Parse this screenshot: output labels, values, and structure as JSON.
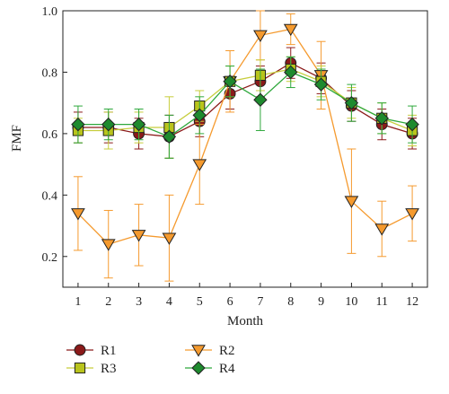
{
  "chart_data": {
    "type": "line",
    "xlabel": "Month",
    "ylabel": "FMF",
    "x": [
      1,
      2,
      3,
      4,
      5,
      6,
      7,
      8,
      9,
      10,
      11,
      12
    ],
    "xlim": [
      0.5,
      12.5
    ],
    "ylim": [
      0.1,
      1.0
    ],
    "yticks": [
      0.2,
      0.4,
      0.6,
      0.8,
      1.0
    ],
    "ytick_labels": [
      "0.2",
      "0.4",
      "0.6",
      "0.8",
      "1.0"
    ],
    "xtick_labels": [
      "1",
      "2",
      "3",
      "4",
      "5",
      "6",
      "7",
      "8",
      "9",
      "10",
      "11",
      "12"
    ],
    "grid": false,
    "legend_placement": "bottom",
    "series": [
      {
        "name": "R1",
        "marker": "circle",
        "color": "#8b1a1a",
        "line_color": "#8b1a1a",
        "values": [
          0.62,
          0.62,
          0.6,
          0.59,
          0.64,
          0.73,
          0.77,
          0.83,
          0.78,
          0.69,
          0.63,
          0.6
        ],
        "errors": [
          0.05,
          0.05,
          0.05,
          0.07,
          0.05,
          0.05,
          0.05,
          0.05,
          0.05,
          0.05,
          0.05,
          0.05
        ]
      },
      {
        "name": "R2",
        "marker": "triangle-down",
        "color": "#f59a2e",
        "line_color": "#f59a2e",
        "values": [
          0.34,
          0.24,
          0.27,
          0.26,
          0.5,
          0.77,
          0.92,
          0.94,
          0.79,
          0.38,
          0.29,
          0.34
        ],
        "errors": [
          0.12,
          0.11,
          0.1,
          0.14,
          0.13,
          0.1,
          0.08,
          0.05,
          0.11,
          0.17,
          0.09,
          0.09
        ]
      },
      {
        "name": "R3",
        "marker": "square",
        "color": "#b9c41c",
        "line_color": "#c7cd3c",
        "values": [
          0.61,
          0.61,
          0.62,
          0.62,
          0.69,
          0.77,
          0.79,
          0.81,
          0.77,
          0.7,
          0.65,
          0.61
        ],
        "errors": [
          0.04,
          0.06,
          0.05,
          0.1,
          0.05,
          0.05,
          0.05,
          0.04,
          0.05,
          0.05,
          0.05,
          0.05
        ]
      },
      {
        "name": "R4",
        "marker": "diamond",
        "color": "#1e8a2e",
        "line_color": "#2ea83c",
        "values": [
          0.63,
          0.63,
          0.63,
          0.59,
          0.66,
          0.77,
          0.71,
          0.8,
          0.76,
          0.7,
          0.65,
          0.63
        ],
        "errors": [
          0.06,
          0.05,
          0.05,
          0.07,
          0.06,
          0.05,
          0.1,
          0.05,
          0.05,
          0.06,
          0.05,
          0.06
        ]
      }
    ]
  }
}
